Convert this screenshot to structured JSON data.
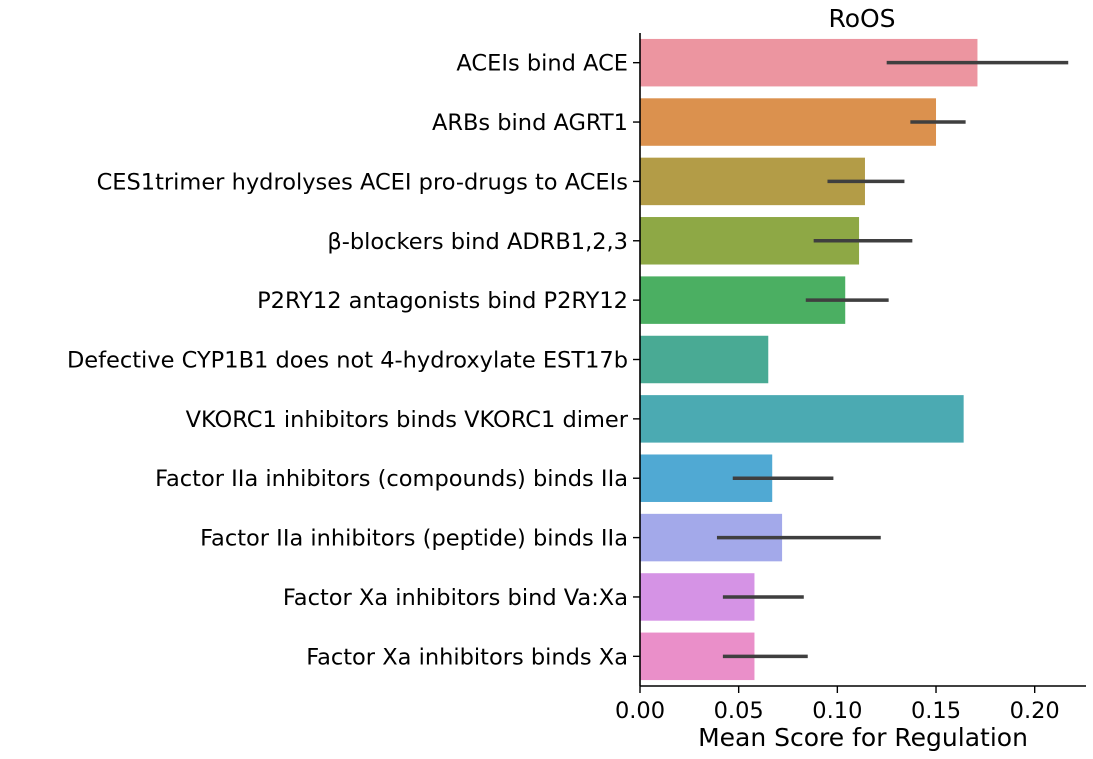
{
  "chart_data": {
    "type": "bar",
    "orientation": "horizontal",
    "title": "RoOS",
    "xlabel": "Mean Score for Regulation",
    "ylabel": "",
    "xlim": [
      0,
      0.226
    ],
    "xticks": [
      0.0,
      0.05,
      0.1,
      0.15,
      0.2
    ],
    "xtick_labels": [
      "0.00",
      "0.05",
      "0.10",
      "0.15",
      "0.20"
    ],
    "grid": false,
    "legend": "none",
    "categories": [
      "ACEIs bind ACE",
      "ARBs bind AGRT1",
      "CES1trimer hydrolyses ACEI pro-drugs to ACEIs",
      "β-blockers bind ADRB1,2,3",
      "P2RY12 antagonists bind P2RY12",
      "Defective CYP1B1 does not 4-hydroxylate EST17b",
      "VKORC1 inhibitors binds VKORC1 dimer",
      "Factor IIa inhibitors (compounds) binds IIa",
      "Factor IIa inhibitors (peptide) binds IIa",
      "Factor Xa inhibitors bind Va:Xa",
      "Factor Xa inhibitors binds Xa"
    ],
    "values": [
      0.171,
      0.15,
      0.114,
      0.111,
      0.104,
      0.065,
      0.164,
      0.067,
      0.072,
      0.058,
      0.058
    ],
    "error_low": [
      0.125,
      0.137,
      0.095,
      0.088,
      0.084,
      null,
      null,
      0.047,
      0.039,
      0.042,
      0.042
    ],
    "error_high": [
      0.217,
      0.165,
      0.134,
      0.138,
      0.126,
      null,
      null,
      0.098,
      0.122,
      0.083,
      0.085
    ],
    "colors": [
      "#EC95A0",
      "#DB914E",
      "#B39C47",
      "#8EA845",
      "#4BAF62",
      "#49AA94",
      "#4BAAB2",
      "#50A9D3",
      "#A3A9EA",
      "#D593E5",
      "#EA8FC9"
    ],
    "error_color": "#3f3f3f"
  }
}
